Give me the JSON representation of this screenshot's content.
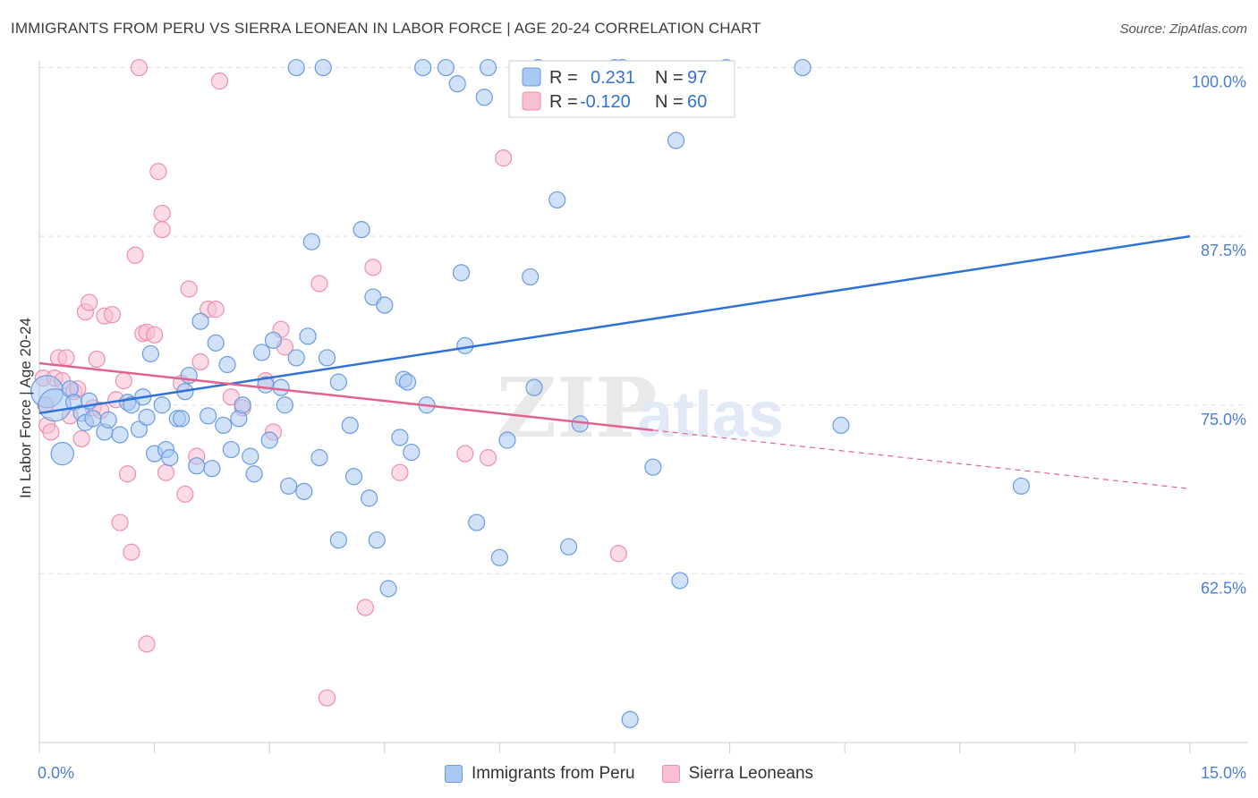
{
  "title": "IMMIGRANTS FROM PERU VS SIERRA LEONEAN IN LABOR FORCE | AGE 20-24 CORRELATION CHART",
  "source": "Source: ZipAtlas.com",
  "watermark": {
    "zip": "ZIP",
    "atlas": "atlas"
  },
  "legend_box": {
    "rows": [
      {
        "r_label": "R =",
        "r_value": "0.231",
        "n_label": "N =",
        "n_value": "97"
      },
      {
        "r_label": "R =",
        "r_value": "-0.120",
        "n_label": "N =",
        "n_value": "60"
      }
    ]
  },
  "colors": {
    "peru_fill": "#a9c8f2",
    "peru_stroke": "#6a9be0",
    "peru_line": "#2f72d6",
    "sl_fill": "#f8bfd1",
    "sl_stroke": "#ec8fae",
    "sl_line": "#e0638e",
    "tick_text": "#4a7fd4",
    "grid": "#dddddd"
  },
  "chart_data": {
    "type": "scatter",
    "title": "IMMIGRANTS FROM PERU VS SIERRA LEONEAN IN LABOR FORCE | AGE 20-24 CORRELATION CHART",
    "xlabel": "",
    "ylabel": "In Labor Force | Age 20-24",
    "xlim": [
      0,
      15
    ],
    "ylim": [
      50,
      100.5
    ],
    "x_tick_labels": [
      "0.0%",
      "15.0%"
    ],
    "y_ticks": [
      62.5,
      75.0,
      87.5,
      100.0
    ],
    "y_tick_labels": [
      "62.5%",
      "75.0%",
      "87.5%",
      "100.0%"
    ],
    "grid": true,
    "legend_position": "top-center",
    "series": [
      {
        "name": "Immigrants from Peru",
        "r": 0.231,
        "n": 97,
        "trend": {
          "x": [
            0.0,
            15.0
          ],
          "y": [
            74.4,
            87.5
          ],
          "dashed_from": null
        },
        "points": [
          [
            0.1,
            76.0,
            2
          ],
          [
            0.2,
            75.0,
            2
          ],
          [
            0.3,
            71.4,
            1.4
          ],
          [
            0.4,
            76.2,
            1
          ],
          [
            0.45,
            75.2,
            1
          ],
          [
            0.55,
            74.4,
            1
          ],
          [
            0.6,
            73.7,
            1
          ],
          [
            0.65,
            75.3,
            1
          ],
          [
            0.7,
            74.0,
            1
          ],
          [
            0.85,
            73.0,
            1
          ],
          [
            0.9,
            73.9,
            1
          ],
          [
            1.05,
            72.8,
            1
          ],
          [
            1.15,
            75.2,
            1
          ],
          [
            1.2,
            75.0,
            1
          ],
          [
            1.3,
            73.2,
            1
          ],
          [
            1.35,
            75.6,
            1
          ],
          [
            1.4,
            74.1,
            1
          ],
          [
            1.45,
            78.8,
            1
          ],
          [
            1.5,
            71.4,
            1
          ],
          [
            1.6,
            75.0,
            1
          ],
          [
            1.65,
            71.7,
            1
          ],
          [
            1.7,
            71.1,
            1
          ],
          [
            1.8,
            74.0,
            1
          ],
          [
            1.85,
            74.0,
            1
          ],
          [
            1.9,
            76.0,
            1
          ],
          [
            1.95,
            77.2,
            1
          ],
          [
            2.05,
            70.5,
            1
          ],
          [
            2.1,
            81.2,
            1
          ],
          [
            2.2,
            74.2,
            1
          ],
          [
            2.25,
            70.3,
            1
          ],
          [
            2.3,
            79.6,
            1
          ],
          [
            2.4,
            73.5,
            1
          ],
          [
            2.45,
            78.0,
            1
          ],
          [
            2.5,
            71.7,
            1
          ],
          [
            2.6,
            74.0,
            1
          ],
          [
            2.65,
            75.0,
            1
          ],
          [
            2.75,
            71.2,
            1
          ],
          [
            2.8,
            69.9,
            1
          ],
          [
            2.9,
            78.9,
            1
          ],
          [
            2.95,
            76.5,
            1
          ],
          [
            3.0,
            72.4,
            1
          ],
          [
            3.05,
            79.8,
            1
          ],
          [
            3.15,
            76.3,
            1
          ],
          [
            3.2,
            75.0,
            1
          ],
          [
            3.25,
            69.0,
            1
          ],
          [
            3.35,
            78.5,
            1
          ],
          [
            3.35,
            100.0,
            1
          ],
          [
            3.45,
            68.6,
            1
          ],
          [
            3.5,
            80.1,
            1
          ],
          [
            3.55,
            87.1,
            1
          ],
          [
            3.65,
            71.1,
            1
          ],
          [
            3.7,
            100.0,
            1
          ],
          [
            3.75,
            78.5,
            1
          ],
          [
            3.9,
            76.7,
            1
          ],
          [
            3.9,
            65.0,
            1
          ],
          [
            4.05,
            73.5,
            1
          ],
          [
            4.1,
            69.7,
            1
          ],
          [
            4.2,
            88.0,
            1
          ],
          [
            4.3,
            68.1,
            1
          ],
          [
            4.35,
            83.0,
            1
          ],
          [
            4.4,
            65.0,
            1
          ],
          [
            4.5,
            82.4,
            1
          ],
          [
            4.55,
            61.4,
            1
          ],
          [
            4.7,
            72.6,
            1
          ],
          [
            4.75,
            76.9,
            1
          ],
          [
            4.8,
            76.7,
            1
          ],
          [
            4.85,
            71.5,
            1
          ],
          [
            5.0,
            100.0,
            1
          ],
          [
            5.05,
            75.0,
            1
          ],
          [
            5.3,
            100.0,
            1
          ],
          [
            5.45,
            98.8,
            1
          ],
          [
            5.5,
            84.8,
            1
          ],
          [
            5.55,
            79.4,
            1
          ],
          [
            5.7,
            66.3,
            1
          ],
          [
            5.85,
            100.0,
            1
          ],
          [
            5.8,
            97.8,
            1
          ],
          [
            6.0,
            63.7,
            1
          ],
          [
            6.1,
            72.4,
            1
          ],
          [
            6.4,
            84.5,
            1
          ],
          [
            6.45,
            76.3,
            1
          ],
          [
            6.5,
            100.0,
            1
          ],
          [
            6.75,
            90.2,
            1
          ],
          [
            6.9,
            64.5,
            1
          ],
          [
            7.05,
            73.6,
            1
          ],
          [
            7.5,
            100.0,
            1
          ],
          [
            7.6,
            100.0,
            1
          ],
          [
            7.7,
            51.7,
            1
          ],
          [
            8.0,
            70.4,
            1
          ],
          [
            8.3,
            94.6,
            1
          ],
          [
            8.35,
            62.0,
            1
          ],
          [
            8.95,
            100.0,
            1
          ],
          [
            9.95,
            100.0,
            1
          ],
          [
            10.45,
            73.5,
            1
          ],
          [
            12.8,
            69.0,
            1
          ]
        ]
      },
      {
        "name": "Sierra Leoneans",
        "r": -0.12,
        "n": 60,
        "trend": {
          "x": [
            0.0,
            15.0
          ],
          "y": [
            78.1,
            68.8
          ],
          "dashed_from": 8.0
        },
        "points": [
          [
            0.05,
            77.0,
            1
          ],
          [
            0.08,
            75.0,
            1
          ],
          [
            0.1,
            73.5,
            1
          ],
          [
            0.15,
            73.0,
            1
          ],
          [
            0.2,
            77.0,
            1
          ],
          [
            0.25,
            78.5,
            1
          ],
          [
            0.3,
            76.8,
            1
          ],
          [
            0.35,
            78.5,
            1
          ],
          [
            0.4,
            74.2,
            1
          ],
          [
            0.45,
            76.0,
            1
          ],
          [
            0.5,
            76.2,
            1
          ],
          [
            0.55,
            72.5,
            1
          ],
          [
            0.6,
            81.9,
            1
          ],
          [
            0.65,
            82.6,
            1
          ],
          [
            0.7,
            74.8,
            1
          ],
          [
            0.75,
            78.4,
            1
          ],
          [
            0.8,
            74.6,
            1
          ],
          [
            0.85,
            81.6,
            1
          ],
          [
            0.95,
            81.7,
            1
          ],
          [
            1.0,
            75.4,
            1
          ],
          [
            1.05,
            66.3,
            1
          ],
          [
            1.1,
            76.8,
            1
          ],
          [
            1.15,
            69.9,
            1
          ],
          [
            1.2,
            64.1,
            1
          ],
          [
            1.25,
            86.1,
            1
          ],
          [
            1.35,
            80.3,
            1
          ],
          [
            1.4,
            80.4,
            1
          ],
          [
            1.5,
            80.2,
            1
          ],
          [
            1.3,
            100.0,
            1
          ],
          [
            1.4,
            57.3,
            1
          ],
          [
            1.55,
            92.3,
            1
          ],
          [
            1.6,
            89.2,
            1
          ],
          [
            1.6,
            88.0,
            1
          ],
          [
            1.65,
            70.0,
            1
          ],
          [
            1.85,
            76.6,
            1
          ],
          [
            1.9,
            68.4,
            1
          ],
          [
            1.95,
            83.6,
            1
          ],
          [
            2.05,
            71.2,
            1
          ],
          [
            2.1,
            78.2,
            1
          ],
          [
            2.2,
            82.1,
            1
          ],
          [
            2.3,
            82.1,
            1
          ],
          [
            2.35,
            99.0,
            1
          ],
          [
            2.5,
            75.6,
            1
          ],
          [
            2.65,
            74.8,
            1
          ],
          [
            2.95,
            76.8,
            1
          ],
          [
            3.05,
            73.0,
            1
          ],
          [
            3.15,
            80.6,
            1
          ],
          [
            3.2,
            79.3,
            1
          ],
          [
            3.65,
            84.0,
            1
          ],
          [
            3.75,
            53.3,
            1
          ],
          [
            4.25,
            60.0,
            1
          ],
          [
            4.35,
            85.2,
            1
          ],
          [
            4.7,
            70.0,
            1
          ],
          [
            5.55,
            71.4,
            1
          ],
          [
            5.85,
            71.1,
            1
          ],
          [
            6.05,
            93.3,
            1
          ],
          [
            7.55,
            64.0,
            1
          ]
        ]
      }
    ]
  }
}
